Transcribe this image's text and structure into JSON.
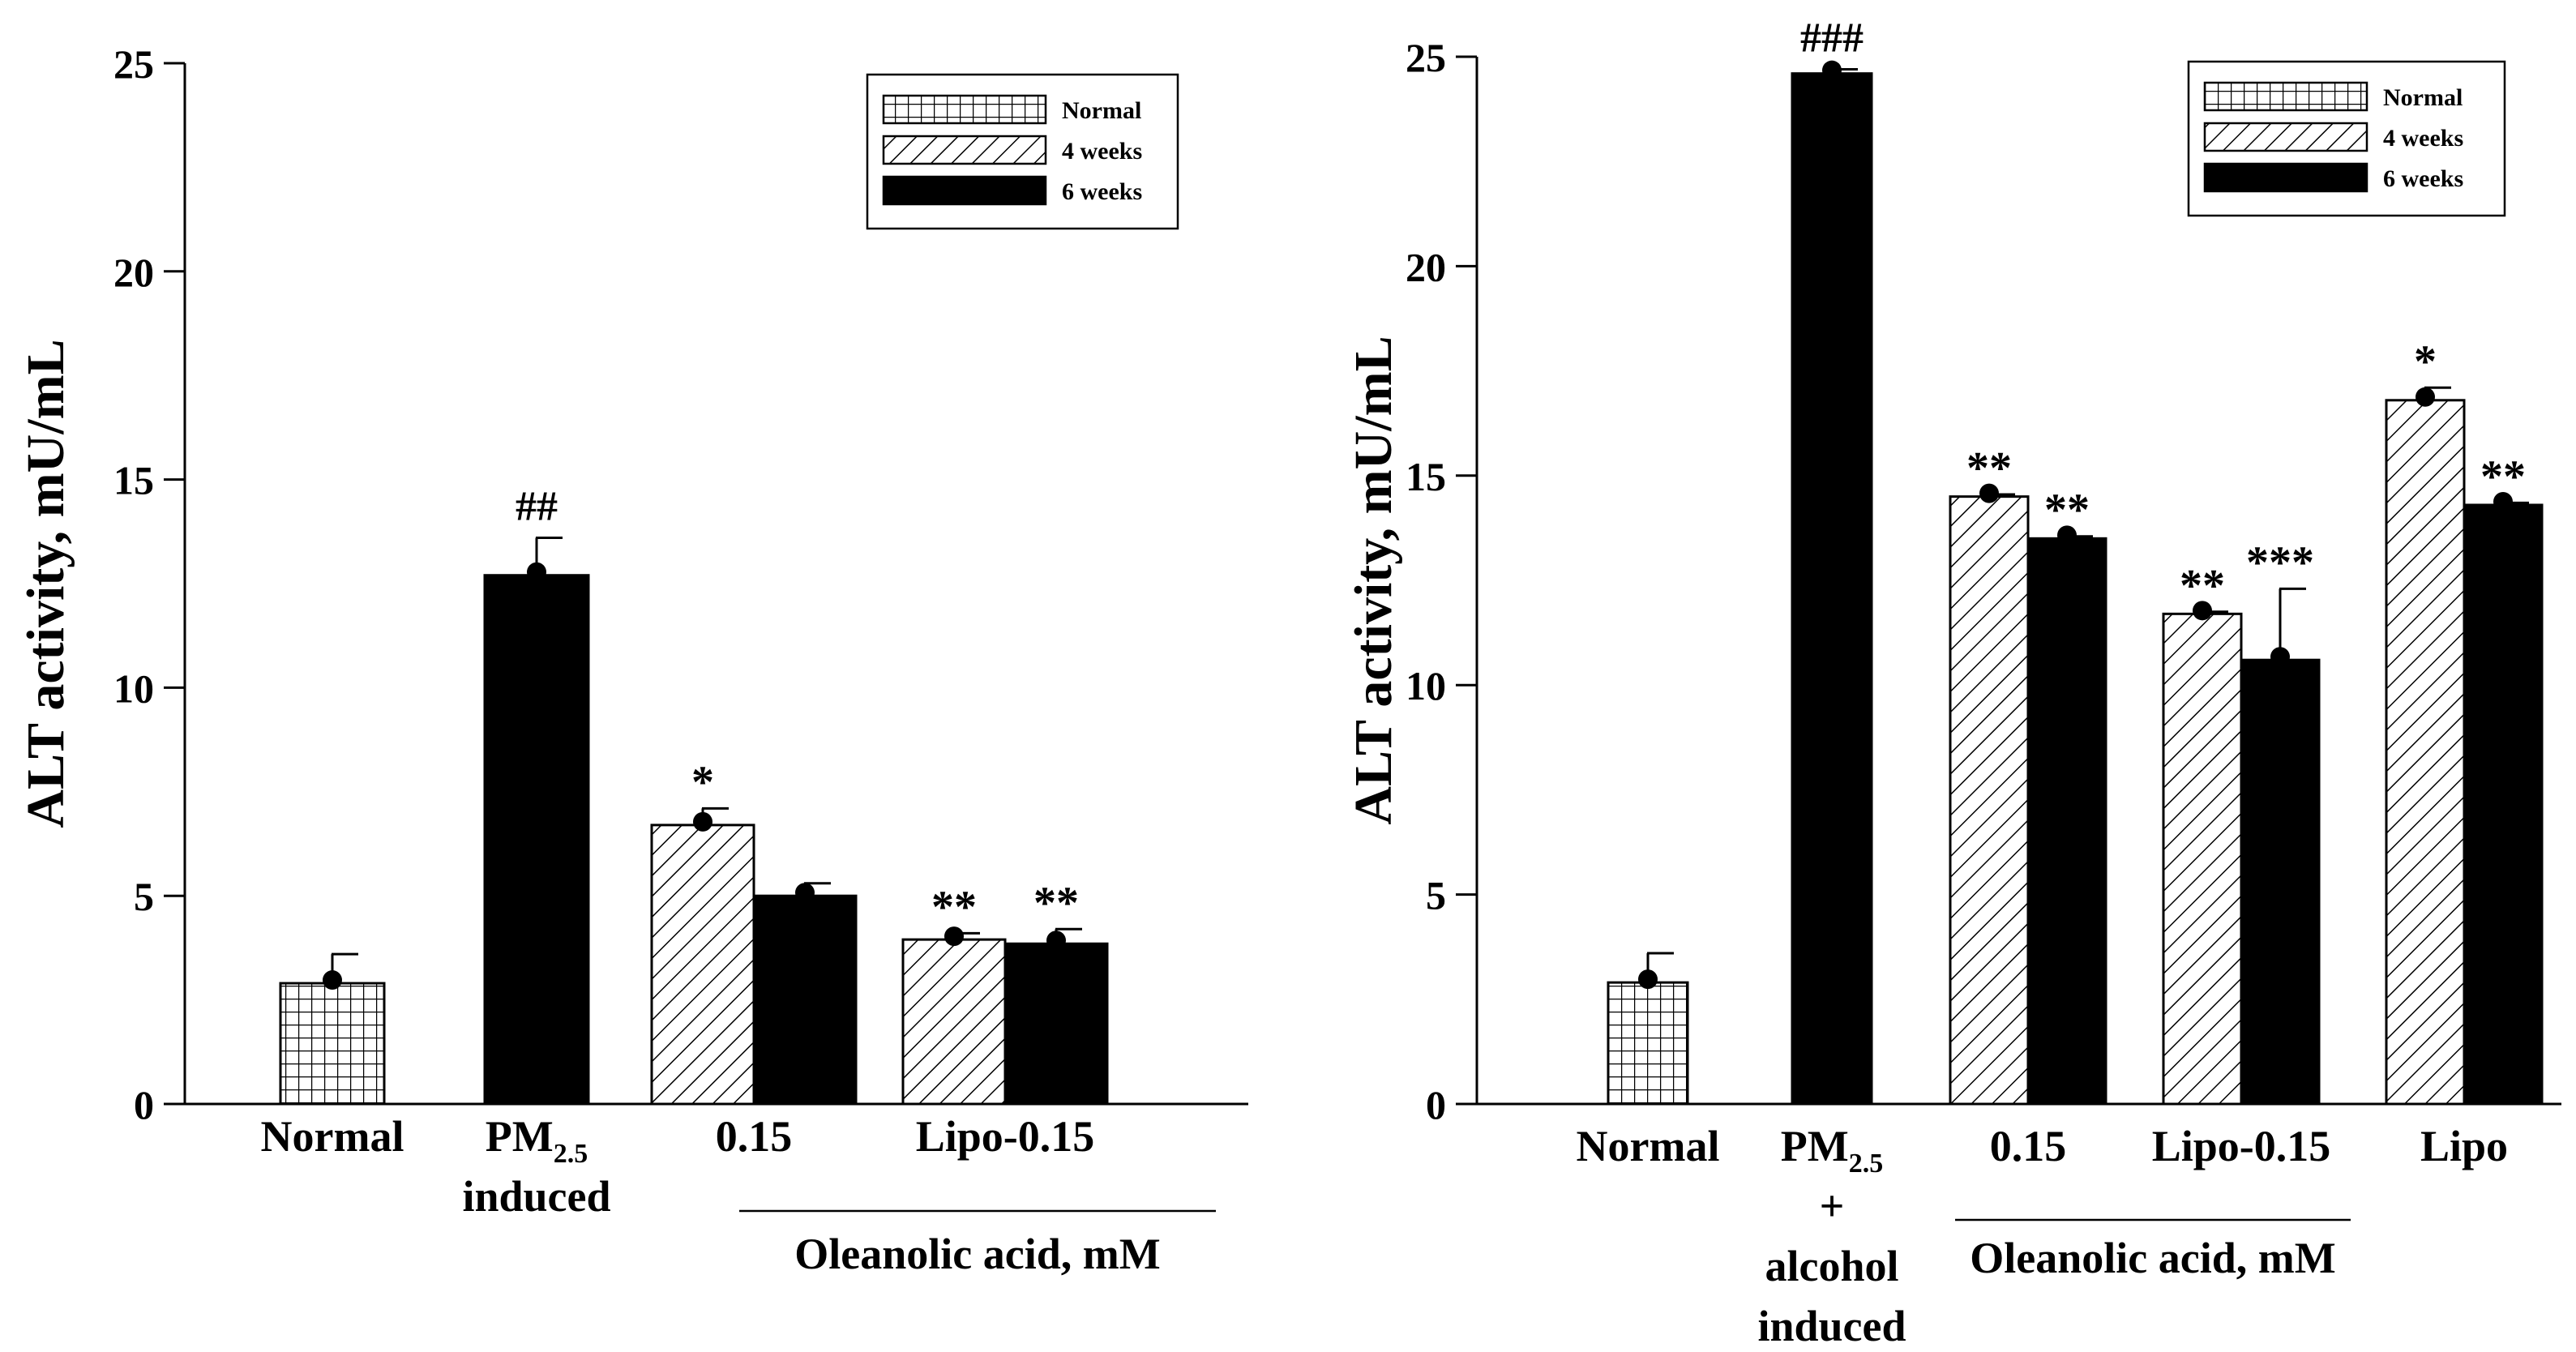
{
  "chart_data": [
    {
      "type": "bar",
      "title": "",
      "ylabel": "ALT activity, mU/mL",
      "ylim": [
        0,
        25
      ],
      "yticks": [
        "0",
        "5",
        "10",
        "15",
        "20",
        "25"
      ],
      "legend": {
        "position": "top-right",
        "entries": [
          {
            "name": "Normal",
            "pattern": "grid"
          },
          {
            "name": "4 weeks",
            "pattern": "hatch"
          },
          {
            "name": "6 weeks",
            "pattern": "solid"
          }
        ]
      },
      "groups": [
        {
          "label": "Normal",
          "bars": [
            {
              "series": "Normal",
              "value": 2.9,
              "error": 0.7,
              "sig": ""
            }
          ]
        },
        {
          "label": "PM",
          "sub": "2.5",
          "label2": "induced",
          "bars": [
            {
              "series": "6 weeks",
              "value": 12.7,
              "error": 0.9,
              "sig": "##"
            }
          ]
        },
        {
          "label": "0.15",
          "bars": [
            {
              "series": "4 weeks",
              "value": 6.7,
              "error": 0.4,
              "sig": "*"
            },
            {
              "series": "6 weeks",
              "value": 5.0,
              "error": 0.3,
              "sig": ""
            }
          ]
        },
        {
          "label": "Lipo-0.15",
          "bars": [
            {
              "series": "4 weeks",
              "value": 3.95,
              "error": 0.15,
              "sig": "**"
            },
            {
              "series": "6 weeks",
              "value": 3.85,
              "error": 0.35,
              "sig": "**"
            }
          ]
        }
      ],
      "bracket": {
        "label": "Oleanolic acid, mM",
        "from_group": 2,
        "to_group": 3
      }
    },
    {
      "type": "bar",
      "title": "",
      "ylabel": "ALT activity, mU/mL",
      "ylim": [
        0,
        25
      ],
      "yticks": [
        "0",
        "5",
        "10",
        "15",
        "20",
        "25"
      ],
      "legend": {
        "position": "top-right",
        "entries": [
          {
            "name": "Normal",
            "pattern": "grid"
          },
          {
            "name": "4 weeks",
            "pattern": "hatch"
          },
          {
            "name": "6 weeks",
            "pattern": "solid"
          }
        ]
      },
      "groups": [
        {
          "label": "Normal",
          "bars": [
            {
              "series": "Normal",
              "value": 2.9,
              "error": 0.7,
              "sig": ""
            }
          ]
        },
        {
          "label": "PM",
          "sub": "2.5",
          "label2": "+",
          "label3": "alcohol",
          "label4": "induced",
          "bars": [
            {
              "series": "6 weeks",
              "value": 24.6,
              "error": 0.1,
              "sig": "###"
            }
          ]
        },
        {
          "label": "0.15",
          "bars": [
            {
              "series": "4 weeks",
              "value": 14.5,
              "error": 0.05,
              "sig": "**"
            },
            {
              "series": "6 weeks",
              "value": 13.5,
              "error": 0.05,
              "sig": "**"
            }
          ]
        },
        {
          "label": "Lipo-0.15",
          "bars": [
            {
              "series": "4 weeks",
              "value": 11.7,
              "error": 0.05,
              "sig": "**"
            },
            {
              "series": "6 weeks",
              "value": 10.6,
              "error": 1.7,
              "sig": "***"
            }
          ]
        },
        {
          "label": "Lipo",
          "bars": [
            {
              "series": "4 weeks",
              "value": 16.8,
              "error": 0.3,
              "sig": "*"
            },
            {
              "series": "6 weeks",
              "value": 14.3,
              "error": 0.05,
              "sig": "**"
            }
          ]
        }
      ],
      "bracket": {
        "label": "Oleanolic acid, mM",
        "from_group": 2,
        "to_group": 3
      }
    }
  ]
}
